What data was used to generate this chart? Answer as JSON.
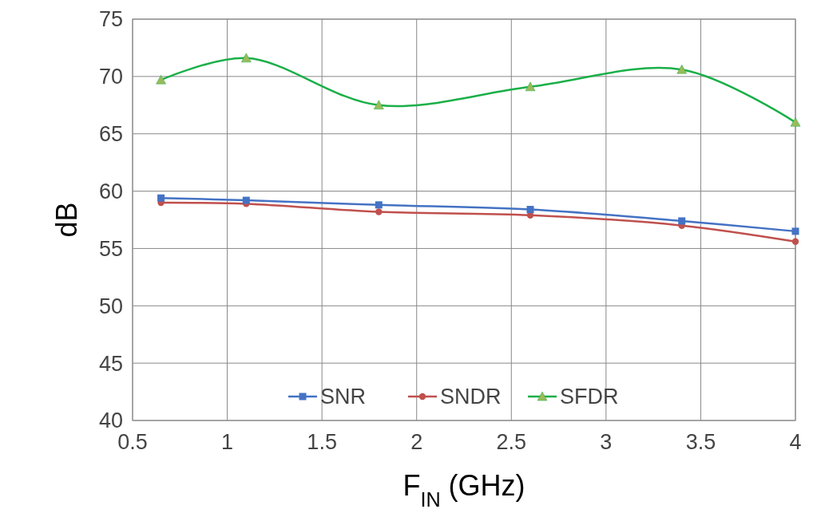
{
  "chart_data": {
    "type": "line",
    "xlabel": "F$_{IN}$ (GHz)",
    "ylabel": "dB",
    "x": [
      0.65,
      1.1,
      1.8,
      2.6,
      3.4,
      4.0
    ],
    "series": [
      {
        "name": "SNR",
        "color": "#4472c4",
        "marker": "square",
        "values": [
          59.4,
          59.2,
          58.8,
          58.4,
          57.4,
          56.5
        ]
      },
      {
        "name": "SNDR",
        "color": "#c0504d",
        "marker": "circle",
        "values": [
          59.0,
          58.9,
          58.2,
          57.9,
          57.0,
          55.6
        ]
      },
      {
        "name": "SFDR",
        "color": "#1aaf48",
        "marker": "triangle",
        "values": [
          69.7,
          71.6,
          67.5,
          69.1,
          70.6,
          66.0
        ]
      }
    ],
    "xlim": [
      0.5,
      4
    ],
    "xticks": [
      0.5,
      1,
      1.5,
      2,
      2.5,
      3,
      3.5,
      4
    ],
    "ylim": [
      40,
      75
    ],
    "yticks": [
      40,
      45,
      50,
      55,
      60,
      65,
      70,
      75
    ],
    "grid": true,
    "legend": "bottom",
    "line_style": "solid"
  }
}
